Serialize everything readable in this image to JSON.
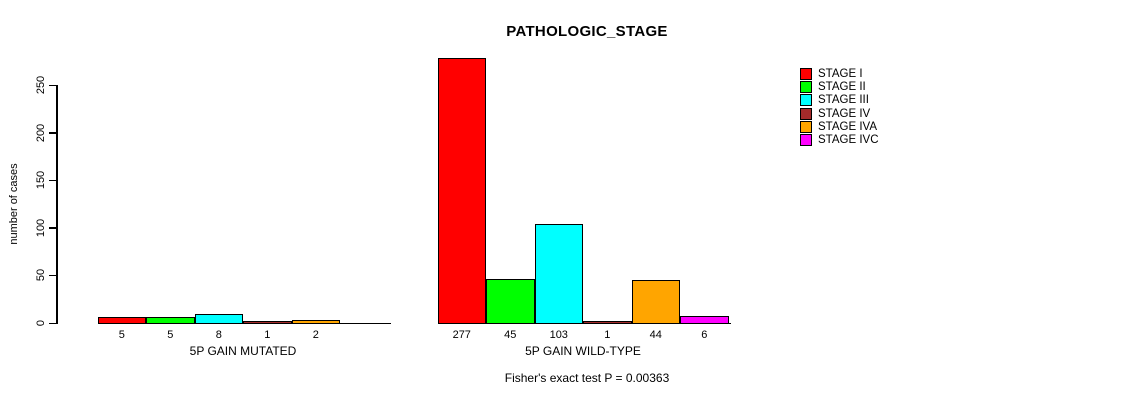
{
  "chart_data": {
    "type": "bar",
    "title": "PATHOLOGIC_STAGE",
    "ylabel": "number of cases",
    "xlabel": "",
    "ylim": [
      0,
      250
    ],
    "yticks": [
      0,
      50,
      100,
      150,
      200,
      250
    ],
    "grid": false,
    "legend_position": "right",
    "categories": [
      "STAGE I",
      "STAGE II",
      "STAGE III",
      "STAGE IV",
      "STAGE IVA",
      "STAGE IVC"
    ],
    "legend": [
      {
        "label": "STAGE I",
        "color": "#FF0000"
      },
      {
        "label": "STAGE II",
        "color": "#00FF00"
      },
      {
        "label": "STAGE III",
        "color": "#00FFFF"
      },
      {
        "label": "STAGE IV",
        "color": "#A52A2A"
      },
      {
        "label": "STAGE IVA",
        "color": "#FFA500"
      },
      {
        "label": "STAGE IVC",
        "color": "#FF00FF"
      }
    ],
    "groups": [
      {
        "label": "5P GAIN MUTATED",
        "values": [
          5,
          5,
          8,
          1,
          2,
          0
        ],
        "value_labels": [
          "5",
          "5",
          "8",
          "1",
          "2",
          ""
        ]
      },
      {
        "label": "5P GAIN WILD-TYPE",
        "values": [
          277,
          45,
          103,
          1,
          44,
          6
        ],
        "value_labels": [
          "277",
          "45",
          "103",
          "1",
          "44",
          "6"
        ]
      }
    ],
    "annotation": "Fisher's exact test P = 0.00363"
  }
}
